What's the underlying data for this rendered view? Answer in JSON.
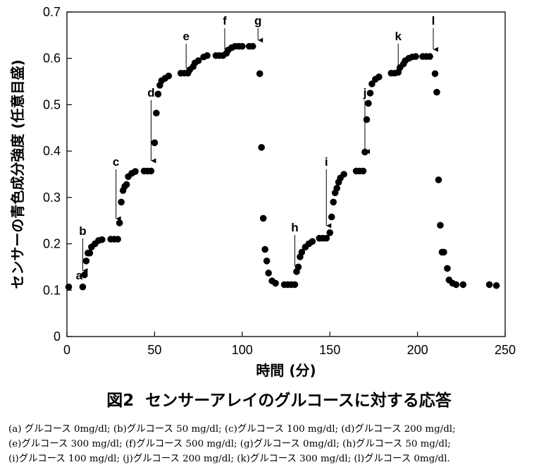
{
  "chart_data": {
    "type": "scatter",
    "xlabel": "時間 (分)",
    "ylabel": "センサーの青色成分強度 (任意目盛)",
    "xlim": [
      0,
      250
    ],
    "ylim": [
      0,
      0.7
    ],
    "xticks": [
      0,
      50,
      100,
      150,
      200,
      250
    ],
    "yticks": [
      0,
      0.1,
      0.2,
      0.3,
      0.4,
      0.5,
      0.6,
      0.7
    ],
    "xtick_labels": [
      "0",
      "50",
      "100",
      "150",
      "200",
      "250"
    ],
    "ytick_labels": [
      "0",
      "0.1",
      "0.2",
      "0.3",
      "0.4",
      "0.5",
      "0.6",
      "0.7"
    ],
    "grid": false,
    "marker_color": "#000000",
    "points": [
      [
        1,
        0.107
      ],
      [
        9,
        0.107
      ],
      [
        10,
        0.133
      ],
      [
        11,
        0.163
      ],
      [
        12,
        0.18
      ],
      [
        13,
        0.18
      ],
      [
        14,
        0.193
      ],
      [
        16,
        0.2
      ],
      [
        18,
        0.207
      ],
      [
        20,
        0.209
      ],
      [
        25,
        0.21
      ],
      [
        27,
        0.21
      ],
      [
        29,
        0.21
      ],
      [
        30,
        0.245
      ],
      [
        31,
        0.29
      ],
      [
        32,
        0.315
      ],
      [
        33,
        0.324
      ],
      [
        34,
        0.328
      ],
      [
        35,
        0.345
      ],
      [
        37,
        0.352
      ],
      [
        39,
        0.356
      ],
      [
        44,
        0.357
      ],
      [
        46,
        0.357
      ],
      [
        48,
        0.357
      ],
      [
        50,
        0.418
      ],
      [
        51,
        0.482
      ],
      [
        52,
        0.523
      ],
      [
        53,
        0.542
      ],
      [
        54,
        0.552
      ],
      [
        56,
        0.557
      ],
      [
        58,
        0.562
      ],
      [
        65,
        0.568
      ],
      [
        67,
        0.568
      ],
      [
        69,
        0.568
      ],
      [
        70,
        0.575
      ],
      [
        72,
        0.582
      ],
      [
        73,
        0.59
      ],
      [
        75,
        0.595
      ],
      [
        78,
        0.603
      ],
      [
        80,
        0.606
      ],
      [
        85,
        0.606
      ],
      [
        87,
        0.606
      ],
      [
        89,
        0.606
      ],
      [
        91,
        0.611
      ],
      [
        92,
        0.618
      ],
      [
        94,
        0.623
      ],
      [
        96,
        0.626
      ],
      [
        98,
        0.626
      ],
      [
        100,
        0.626
      ],
      [
        104,
        0.626
      ],
      [
        106,
        0.626
      ],
      [
        110,
        0.567
      ],
      [
        111,
        0.408
      ],
      [
        112,
        0.255
      ],
      [
        113,
        0.188
      ],
      [
        114,
        0.163
      ],
      [
        115,
        0.137
      ],
      [
        117,
        0.12
      ],
      [
        119,
        0.115
      ],
      [
        124,
        0.112
      ],
      [
        126,
        0.112
      ],
      [
        128,
        0.112
      ],
      [
        130,
        0.112
      ],
      [
        131,
        0.14
      ],
      [
        132,
        0.15
      ],
      [
        133,
        0.172
      ],
      [
        134,
        0.182
      ],
      [
        136,
        0.193
      ],
      [
        138,
        0.2
      ],
      [
        140,
        0.205
      ],
      [
        144,
        0.212
      ],
      [
        146,
        0.212
      ],
      [
        148,
        0.212
      ],
      [
        150,
        0.224
      ],
      [
        151,
        0.258
      ],
      [
        152,
        0.29
      ],
      [
        153,
        0.31
      ],
      [
        154,
        0.32
      ],
      [
        155,
        0.333
      ],
      [
        156,
        0.342
      ],
      [
        158,
        0.35
      ],
      [
        165,
        0.357
      ],
      [
        167,
        0.357
      ],
      [
        169,
        0.357
      ],
      [
        170,
        0.398
      ],
      [
        171,
        0.468
      ],
      [
        172,
        0.503
      ],
      [
        173,
        0.525
      ],
      [
        174,
        0.545
      ],
      [
        176,
        0.555
      ],
      [
        178,
        0.56
      ],
      [
        185,
        0.568
      ],
      [
        187,
        0.568
      ],
      [
        189,
        0.57
      ],
      [
        190,
        0.58
      ],
      [
        192,
        0.588
      ],
      [
        193,
        0.595
      ],
      [
        195,
        0.6
      ],
      [
        197,
        0.603
      ],
      [
        199,
        0.604
      ],
      [
        203,
        0.604
      ],
      [
        205,
        0.604
      ],
      [
        207,
        0.604
      ],
      [
        210,
        0.567
      ],
      [
        211,
        0.527
      ],
      [
        212,
        0.338
      ],
      [
        213,
        0.24
      ],
      [
        214,
        0.182
      ],
      [
        215,
        0.182
      ],
      [
        217,
        0.147
      ],
      [
        218,
        0.122
      ],
      [
        220,
        0.115
      ],
      [
        222,
        0.112
      ],
      [
        226,
        0.112
      ],
      [
        241,
        0.112
      ],
      [
        245,
        0.11
      ]
    ],
    "annotations": [
      {
        "label": "a",
        "x": 7
      },
      {
        "label": "b",
        "x": 9,
        "y": 0.133
      },
      {
        "label": "c",
        "x": 28,
        "y": 0.245
      },
      {
        "label": "d",
        "x": 48,
        "y": 0.37
      },
      {
        "label": "e",
        "x": 68,
        "y": 0.57
      },
      {
        "label": "f",
        "x": 90,
        "y": 0.61
      },
      {
        "label": "g",
        "x": 109,
        "y": 0.63
      },
      {
        "label": "h",
        "x": 130,
        "y": 0.143
      },
      {
        "label": "i",
        "x": 148,
        "y": 0.23
      },
      {
        "label": "j",
        "x": 170,
        "y": 0.39
      },
      {
        "label": "k",
        "x": 189,
        "y": 0.575
      },
      {
        "label": "l",
        "x": 209,
        "y": 0.61
      }
    ]
  },
  "caption": {
    "title": "図2  センサーアレイのグルコースに対する応答",
    "line1": "(a) グルコース 0mg/dl; (b)グルコース 50 mg/dl; (c)グルコース 100 mg/dl; (d)グルコース 200 mg/dl;",
    "line2": "(e)グルコース 300 mg/dl; (f)グルコース 500 mg/dl; (g)グルコース 0mg/dl; (h)グルコース 50 mg/dl;",
    "line3": "(i)グルコース 100 mg/dl; (j)グルコース 200 mg/dl; (k)グルコース 300 mg/dl; (l)グルコース 0mg/dl."
  }
}
